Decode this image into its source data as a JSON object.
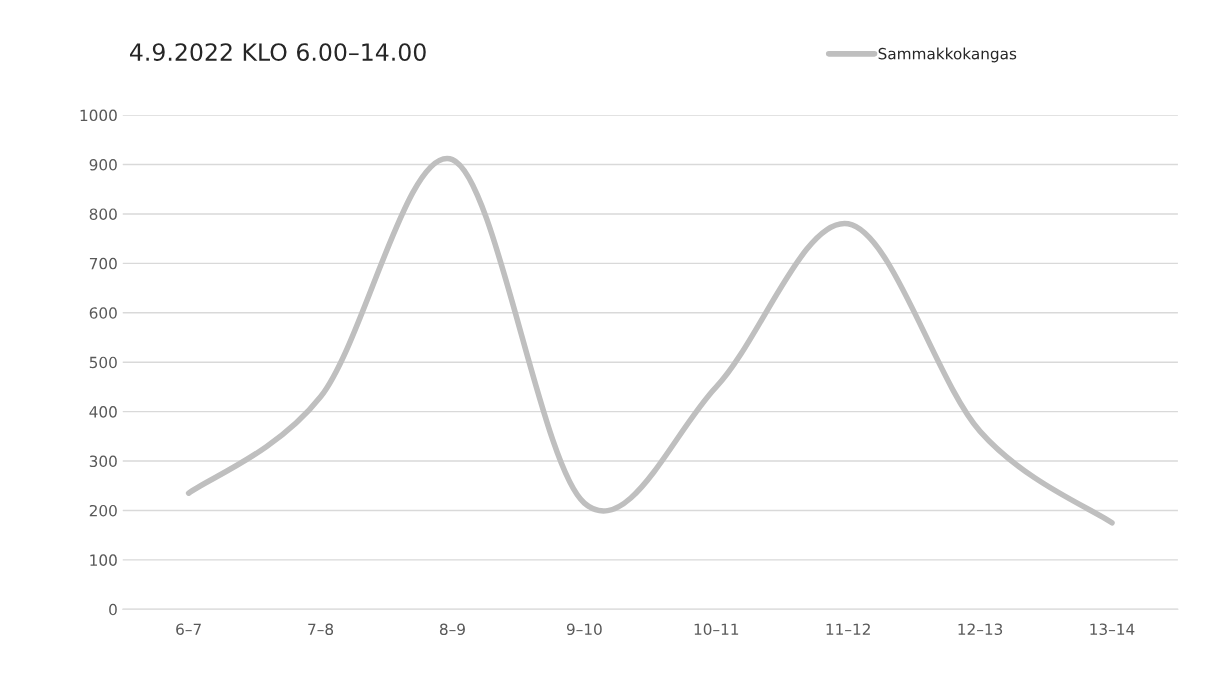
{
  "chart_data": {
    "type": "line",
    "title": "4.9.2022 KLO 6.00–14.00",
    "categories": [
      "6–7",
      "7–8",
      "8–9",
      "9–10",
      "10–11",
      "11–12",
      "12–13",
      "13–14"
    ],
    "series": [
      {
        "name": "Sammakkokangas",
        "color": "#bfbfbf",
        "values": [
          235,
          430,
          910,
          215,
          450,
          780,
          360,
          175
        ]
      }
    ],
    "ylim": [
      0,
      1000
    ],
    "yticks": [
      0,
      100,
      200,
      300,
      400,
      500,
      600,
      700,
      800,
      900,
      1000
    ],
    "grid": "y",
    "legend": "top right",
    "marker": "none",
    "line_style": "solid"
  }
}
